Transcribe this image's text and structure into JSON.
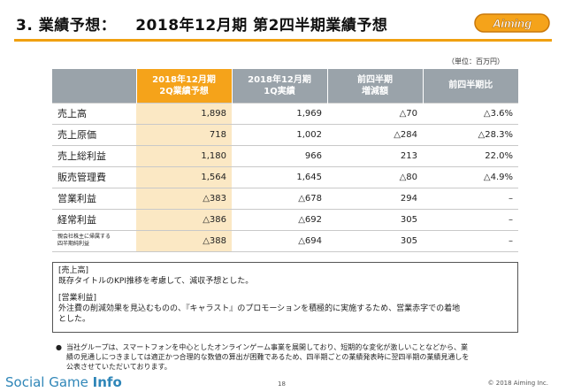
{
  "header": {
    "section": "3. 業績予想：",
    "title": "2018年12月期 第2四半期業績予想"
  },
  "logo": {
    "text": "Aiming",
    "color": "#f5a31a"
  },
  "unit_note": "（単位：百万円）",
  "table": {
    "headers": {
      "col1": [
        "2018年12月期",
        "2Q業績予想"
      ],
      "col2": [
        "2018年12月期",
        "1Q実績"
      ],
      "col3": [
        "前四半期",
        "増減額"
      ],
      "col4": [
        "前四半期比"
      ]
    },
    "rows": [
      {
        "label": "売上高",
        "forecast": "1,898",
        "q1": "1,969",
        "diff": "△70",
        "ratio": "△3.6%"
      },
      {
        "label": "売上原価",
        "forecast": "718",
        "q1": "1,002",
        "diff": "△284",
        "ratio": "△28.3%"
      },
      {
        "label": "売上総利益",
        "forecast": "1,180",
        "q1": "966",
        "diff": "213",
        "ratio": "22.0%"
      },
      {
        "label": "販売管理費",
        "forecast": "1,564",
        "q1": "1,645",
        "diff": "△80",
        "ratio": "△4.9%"
      },
      {
        "label": "営業利益",
        "forecast": "△383",
        "q1": "△678",
        "diff": "294",
        "ratio": "–"
      },
      {
        "label": "経常利益",
        "forecast": "△386",
        "q1": "△692",
        "diff": "305",
        "ratio": "–"
      },
      {
        "label_lines": [
          "親会社株主に帰属する",
          "四半期純利益"
        ],
        "forecast": "△388",
        "q1": "△694",
        "diff": "305",
        "ratio": "–"
      }
    ],
    "colors": {
      "header": "#9aa3aa",
      "highlight_header": "#f5a31a",
      "highlight_cell": "#fbe8c4"
    }
  },
  "notes": {
    "sales_title": "[売上高]",
    "sales_text": "既存タイトルのKPI推移を考慮して、減収予想とした。",
    "op_title": "[営業利益]",
    "op_text_1": "外注費の削減効果を見込むものの、『キャラスト』のプロモーションを積極的に実施するため、営業赤字での着地",
    "op_text_2": "とした。"
  },
  "footnote": {
    "bullet": "●",
    "line1": "当社グループは、スマートフォンを中心としたオンラインゲーム事業を展開しており、短期的な変化が激しいことなどから、業",
    "line2": "績の見通しにつきましては適正かつ合理的な数値の算出が困難であるため、四半期ごとの業績発表時に翌四半期の業績見通しを",
    "line3": "公表させていただいております。"
  },
  "footer": {
    "brand_light": "Social Game ",
    "brand_bold": "Info",
    "page_number": "18",
    "copyright": "© 2018 Aiming Inc."
  }
}
